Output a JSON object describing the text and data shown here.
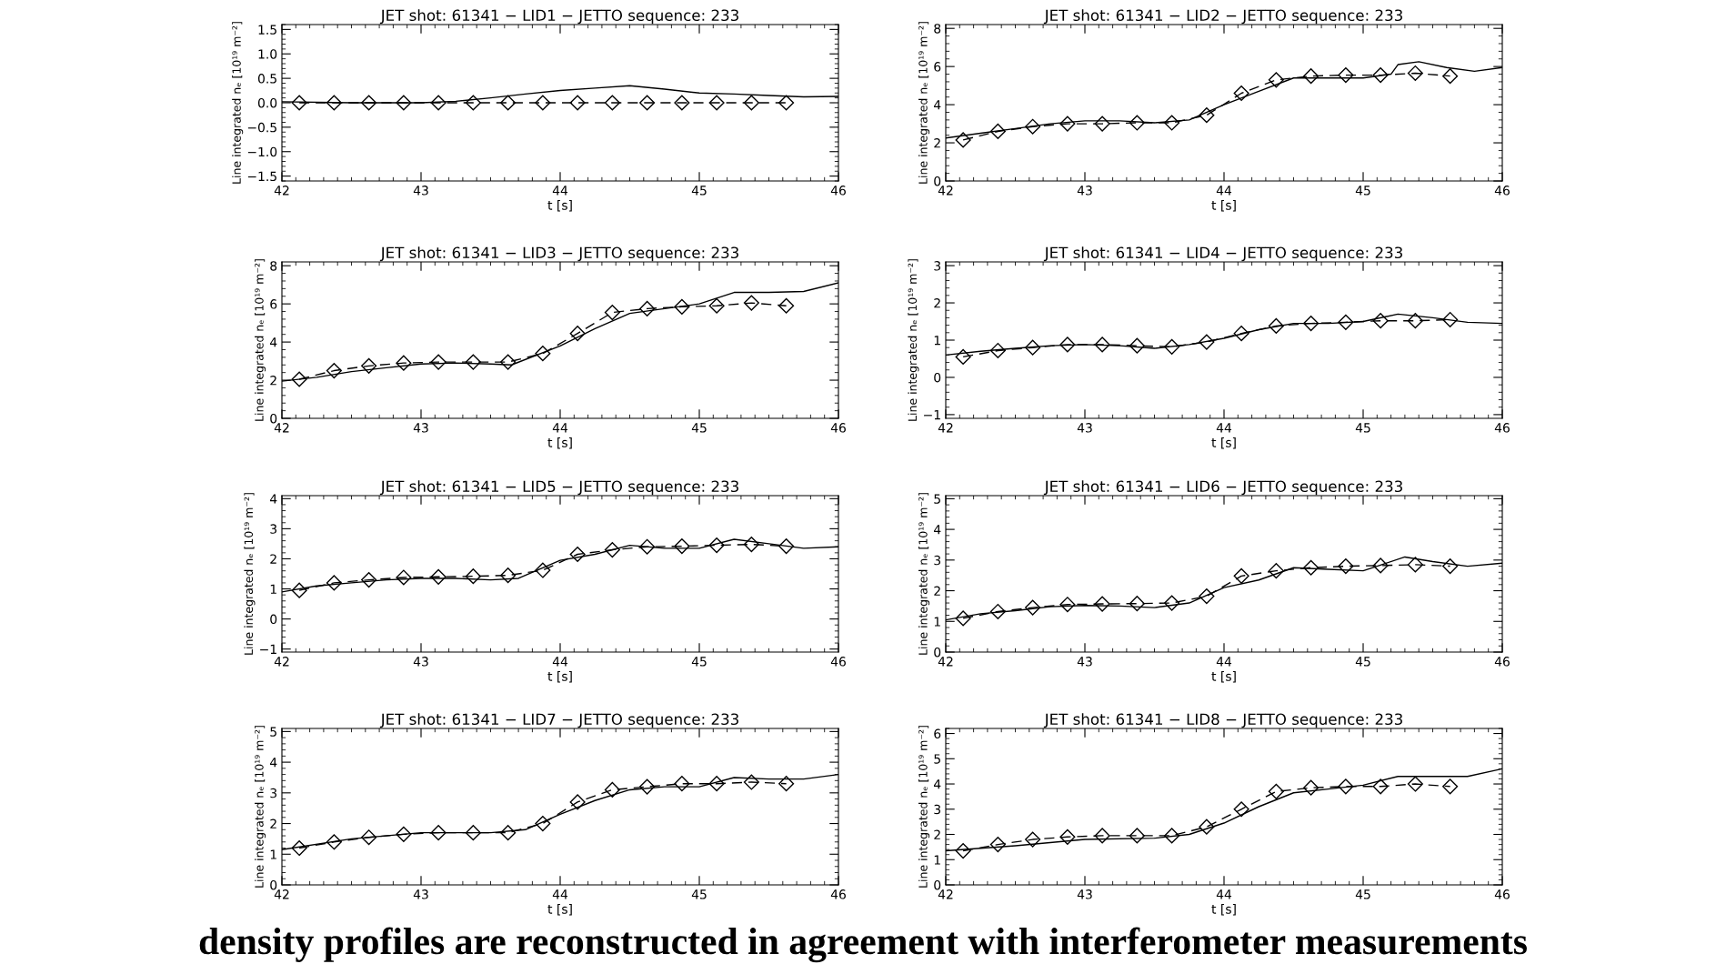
{
  "chart_data": [
    {
      "type": "line",
      "title": "JET shot: 61341 − LID1 − JETTO sequence: 233",
      "xlabel": "t [s]",
      "ylabel": "Line integrated nₑ [10¹⁹ m⁻²]",
      "xlim": [
        42,
        46
      ],
      "xticks": [
        42,
        43,
        44,
        45,
        46
      ],
      "ylim": [
        -1.6,
        1.6
      ],
      "yticks": [
        {
          "value": -1.5,
          "label": "−1.5"
        },
        {
          "value": -1.0,
          "label": "−1.0"
        },
        {
          "value": -0.5,
          "label": "−0.5"
        },
        {
          "value": 0,
          "label": "0.0"
        },
        {
          "value": 0.5,
          "label": "0.5"
        },
        {
          "value": 1.0,
          "label": "1.0"
        },
        {
          "value": 1.5,
          "label": "1.5"
        }
      ],
      "grid": false,
      "annotations": [
        "density profiles are reconstructed in agreement with interferometer measurements"
      ],
      "series": [
        {
          "color": "#000000",
          "line_style": "solid",
          "marker": "none",
          "x": [
            42,
            42.5,
            43,
            43.25,
            43.5,
            43.75,
            44,
            44.25,
            44.5,
            44.75,
            45,
            45.25,
            45.5,
            45.75,
            46
          ],
          "values": [
            0.02,
            0.0,
            0.0,
            0.03,
            0.1,
            0.18,
            0.25,
            0.3,
            0.35,
            0.28,
            0.2,
            0.18,
            0.15,
            0.12,
            0.13
          ]
        },
        {
          "color": "#000000",
          "line_style": "dashed",
          "marker": "diamond",
          "x": [
            42.125,
            42.375,
            42.625,
            42.875,
            43.125,
            43.375,
            43.625,
            43.875,
            44.125,
            44.375,
            44.625,
            44.875,
            45.125,
            45.375,
            45.625
          ],
          "values": [
            0,
            0,
            0,
            0,
            0,
            0,
            0,
            0,
            0,
            0,
            0,
            0,
            0,
            0,
            0
          ]
        }
      ]
    },
    {
      "type": "line",
      "title": "JET shot: 61341 − LID2 − JETTO sequence: 233",
      "xlabel": "t [s]",
      "ylabel": "Line integrated nₑ [10¹⁹ m⁻²]",
      "xlim": [
        42,
        46
      ],
      "xticks": [
        42,
        43,
        44,
        45,
        46
      ],
      "ylim": [
        0,
        8.2
      ],
      "yticks": [
        0,
        2,
        4,
        6,
        8
      ],
      "grid": false,
      "series": [
        {
          "color": "#000000",
          "line_style": "solid",
          "marker": "none",
          "x": [
            42,
            42.25,
            42.5,
            42.75,
            43,
            43.25,
            43.5,
            43.75,
            44,
            44.25,
            44.5,
            44.75,
            45,
            45.2,
            45.25,
            45.4,
            45.6,
            45.8,
            46
          ],
          "values": [
            2.25,
            2.5,
            2.75,
            3.0,
            3.15,
            3.15,
            3.05,
            3.2,
            4.0,
            4.7,
            5.4,
            5.4,
            5.4,
            5.6,
            6.1,
            6.25,
            5.95,
            5.75,
            5.95
          ]
        },
        {
          "color": "#000000",
          "line_style": "dashed",
          "marker": "diamond",
          "x": [
            42.125,
            42.375,
            42.625,
            42.875,
            43.125,
            43.375,
            43.625,
            43.875,
            44.125,
            44.375,
            44.625,
            44.875,
            45.125,
            45.375,
            45.625
          ],
          "values": [
            2.15,
            2.6,
            2.85,
            3.0,
            3.0,
            3.05,
            3.05,
            3.45,
            4.6,
            5.3,
            5.5,
            5.55,
            5.55,
            5.65,
            5.5
          ]
        }
      ]
    },
    {
      "type": "line",
      "title": "JET shot: 61341 − LID3 − JETTO sequence: 233",
      "xlabel": "t [s]",
      "ylabel": "Line integrated nₑ [10¹⁹ m⁻²]",
      "xlim": [
        42,
        46
      ],
      "xticks": [
        42,
        43,
        44,
        45,
        46
      ],
      "ylim": [
        0,
        8.2
      ],
      "yticks": [
        0,
        2,
        4,
        6,
        8
      ],
      "grid": false,
      "series": [
        {
          "color": "#000000",
          "line_style": "solid",
          "marker": "none",
          "x": [
            42,
            42.25,
            42.5,
            42.75,
            43,
            43.25,
            43.5,
            43.65,
            44,
            44.25,
            44.5,
            44.75,
            45,
            45.25,
            45.5,
            45.75,
            46
          ],
          "values": [
            1.95,
            2.15,
            2.45,
            2.65,
            2.85,
            2.9,
            2.85,
            2.8,
            3.8,
            4.7,
            5.5,
            5.75,
            6.0,
            6.6,
            6.6,
            6.65,
            7.1
          ]
        },
        {
          "color": "#000000",
          "line_style": "dashed",
          "marker": "diamond",
          "x": [
            42.125,
            42.375,
            42.625,
            42.875,
            43.125,
            43.375,
            43.625,
            43.875,
            44.125,
            44.375,
            44.625,
            44.875,
            45.125,
            45.375,
            45.625
          ],
          "values": [
            2.05,
            2.5,
            2.75,
            2.9,
            2.95,
            2.95,
            2.95,
            3.4,
            4.45,
            5.55,
            5.75,
            5.85,
            5.9,
            6.05,
            5.9
          ]
        }
      ]
    },
    {
      "type": "line",
      "title": "JET shot: 61341 − LID4 − JETTO sequence: 233",
      "xlabel": "t [s]",
      "ylabel": "Line integrated nₑ [10¹⁹ m⁻²]",
      "xlim": [
        42,
        46
      ],
      "xticks": [
        42,
        43,
        44,
        45,
        46
      ],
      "ylim": [
        -1.1,
        3.1
      ],
      "yticks": [
        {
          "value": -1,
          "label": "−1"
        },
        0,
        1,
        2,
        3
      ],
      "grid": false,
      "series": [
        {
          "color": "#000000",
          "line_style": "solid",
          "marker": "none",
          "x": [
            42,
            42.25,
            42.5,
            42.75,
            43,
            43.25,
            43.5,
            43.75,
            44,
            44.25,
            44.5,
            44.75,
            45,
            45.25,
            45.5,
            45.75,
            46
          ],
          "values": [
            0.6,
            0.7,
            0.78,
            0.85,
            0.88,
            0.85,
            0.78,
            0.88,
            1.05,
            1.28,
            1.45,
            1.45,
            1.5,
            1.7,
            1.6,
            1.48,
            1.45
          ]
        },
        {
          "color": "#000000",
          "line_style": "dashed",
          "marker": "diamond",
          "x": [
            42.125,
            42.375,
            42.625,
            42.875,
            43.125,
            43.375,
            43.625,
            43.875,
            44.125,
            44.375,
            44.625,
            44.875,
            45.125,
            45.375,
            45.625
          ],
          "values": [
            0.55,
            0.72,
            0.8,
            0.88,
            0.88,
            0.85,
            0.82,
            0.95,
            1.18,
            1.38,
            1.45,
            1.48,
            1.52,
            1.52,
            1.55
          ]
        }
      ]
    },
    {
      "type": "line",
      "title": "JET shot: 61341 − LID5 − JETTO sequence: 233",
      "xlabel": "t [s]",
      "ylabel": "Line integrated nₑ [10¹⁹ m⁻²]",
      "xlim": [
        42,
        46
      ],
      "xticks": [
        42,
        43,
        44,
        45,
        46
      ],
      "ylim": [
        -1.1,
        4.1
      ],
      "yticks": [
        {
          "value": -1,
          "label": "−1"
        },
        0,
        1,
        2,
        3,
        4
      ],
      "grid": false,
      "series": [
        {
          "color": "#000000",
          "line_style": "solid",
          "marker": "none",
          "x": [
            42,
            42.25,
            42.5,
            42.75,
            43,
            43.25,
            43.5,
            43.7,
            44,
            44.25,
            44.5,
            44.75,
            45,
            45.25,
            45.5,
            45.75,
            46
          ],
          "values": [
            0.9,
            1.1,
            1.2,
            1.3,
            1.35,
            1.35,
            1.3,
            1.35,
            1.95,
            2.15,
            2.45,
            2.35,
            2.35,
            2.65,
            2.5,
            2.35,
            2.4
          ]
        },
        {
          "color": "#000000",
          "line_style": "dashed",
          "marker": "diamond",
          "x": [
            42.125,
            42.375,
            42.625,
            42.875,
            43.125,
            43.375,
            43.625,
            43.875,
            44.125,
            44.375,
            44.625,
            44.875,
            45.125,
            45.375,
            45.625
          ],
          "values": [
            0.95,
            1.2,
            1.3,
            1.38,
            1.4,
            1.42,
            1.45,
            1.62,
            2.15,
            2.3,
            2.4,
            2.42,
            2.45,
            2.48,
            2.42
          ]
        }
      ]
    },
    {
      "type": "line",
      "title": "JET shot: 61341 − LID6 − JETTO sequence: 233",
      "xlabel": "t [s]",
      "ylabel": "Line integrated nₑ [10¹⁹ m⁻²]",
      "xlim": [
        42,
        46
      ],
      "xticks": [
        42,
        43,
        44,
        45,
        46
      ],
      "ylim": [
        0,
        5.1
      ],
      "yticks": [
        0,
        1,
        2,
        3,
        4,
        5
      ],
      "grid": false,
      "series": [
        {
          "color": "#000000",
          "line_style": "solid",
          "marker": "none",
          "x": [
            42,
            42.25,
            42.5,
            42.75,
            43,
            43.25,
            43.5,
            43.75,
            44,
            44.25,
            44.5,
            44.75,
            45,
            45.1,
            45.3,
            45.5,
            45.75,
            46
          ],
          "values": [
            1.05,
            1.25,
            1.35,
            1.48,
            1.52,
            1.5,
            1.45,
            1.6,
            2.1,
            2.35,
            2.75,
            2.7,
            2.65,
            2.8,
            3.1,
            2.95,
            2.8,
            2.9
          ]
        },
        {
          "color": "#000000",
          "line_style": "dashed",
          "marker": "diamond",
          "x": [
            42.125,
            42.375,
            42.625,
            42.875,
            43.125,
            43.375,
            43.625,
            43.875,
            44.125,
            44.375,
            44.625,
            44.875,
            45.125,
            45.375,
            45.625
          ],
          "values": [
            1.1,
            1.32,
            1.45,
            1.55,
            1.57,
            1.58,
            1.6,
            1.82,
            2.48,
            2.65,
            2.75,
            2.8,
            2.82,
            2.85,
            2.8
          ]
        }
      ]
    },
    {
      "type": "line",
      "title": "JET shot: 61341 − LID7 − JETTO sequence: 233",
      "xlabel": "t [s]",
      "ylabel": "Line integrated nₑ [10¹⁹ m⁻²]",
      "xlim": [
        42,
        46
      ],
      "xticks": [
        42,
        43,
        44,
        45,
        46
      ],
      "ylim": [
        0,
        5.1
      ],
      "yticks": [
        0,
        1,
        2,
        3,
        4,
        5
      ],
      "grid": false,
      "series": [
        {
          "color": "#000000",
          "line_style": "solid",
          "marker": "none",
          "x": [
            42,
            42.5,
            43,
            43.5,
            43.75,
            44,
            44.25,
            44.5,
            44.75,
            45,
            45.25,
            45.5,
            45.75,
            46
          ],
          "values": [
            1.15,
            1.5,
            1.7,
            1.7,
            1.8,
            2.3,
            2.75,
            3.1,
            3.2,
            3.2,
            3.5,
            3.45,
            3.45,
            3.6
          ]
        },
        {
          "color": "#000000",
          "line_style": "dashed",
          "marker": "diamond",
          "x": [
            42.125,
            42.375,
            42.625,
            42.875,
            43.125,
            43.375,
            43.625,
            43.875,
            44.125,
            44.375,
            44.625,
            44.875,
            45.125,
            45.375,
            45.625
          ],
          "values": [
            1.2,
            1.4,
            1.55,
            1.65,
            1.7,
            1.7,
            1.7,
            2.0,
            2.7,
            3.1,
            3.2,
            3.3,
            3.3,
            3.35,
            3.3
          ]
        }
      ]
    },
    {
      "type": "line",
      "title": "JET shot: 61341 − LID8 − JETTO sequence: 233",
      "xlabel": "t [s]",
      "ylabel": "Line integrated nₑ [10¹⁹ m⁻²]",
      "xlim": [
        42,
        46
      ],
      "xticks": [
        42,
        43,
        44,
        45,
        46
      ],
      "ylim": [
        0,
        6.2
      ],
      "yticks": [
        0,
        1,
        2,
        3,
        4,
        5,
        6
      ],
      "grid": false,
      "series": [
        {
          "color": "#000000",
          "line_style": "solid",
          "marker": "none",
          "x": [
            42,
            42.5,
            43,
            43.5,
            43.75,
            44,
            44.25,
            44.5,
            44.75,
            45,
            45.25,
            45.5,
            45.75,
            46
          ],
          "values": [
            1.35,
            1.55,
            1.8,
            1.85,
            2.0,
            2.45,
            3.1,
            3.65,
            3.8,
            3.95,
            4.3,
            4.3,
            4.3,
            4.6
          ]
        },
        {
          "color": "#000000",
          "line_style": "dashed",
          "marker": "diamond",
          "x": [
            42.125,
            42.375,
            42.625,
            42.875,
            43.125,
            43.375,
            43.625,
            43.875,
            44.125,
            44.375,
            44.625,
            44.875,
            45.125,
            45.375,
            45.625
          ],
          "values": [
            1.35,
            1.6,
            1.8,
            1.9,
            1.95,
            1.95,
            1.95,
            2.3,
            3.0,
            3.7,
            3.85,
            3.9,
            3.9,
            4.0,
            3.9
          ]
        }
      ]
    }
  ]
}
